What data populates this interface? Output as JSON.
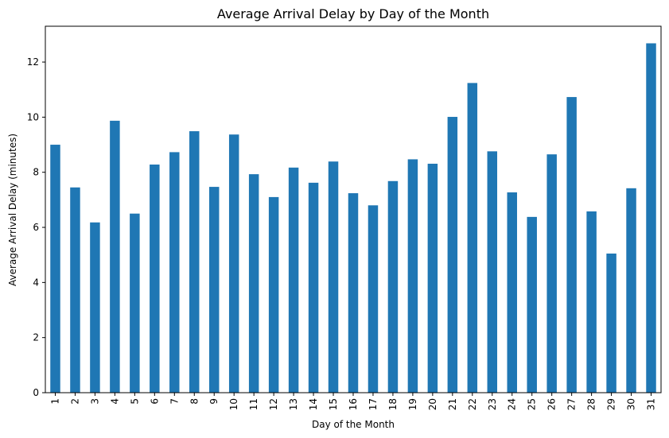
{
  "chart_data": {
    "type": "bar",
    "title": "Average Arrival Delay by Day of the Month",
    "xlabel": "Day of the Month",
    "ylabel": "Average Arrival Delay (minutes)",
    "categories": [
      "1",
      "2",
      "3",
      "4",
      "5",
      "6",
      "7",
      "8",
      "9",
      "10",
      "11",
      "12",
      "13",
      "14",
      "15",
      "16",
      "17",
      "18",
      "19",
      "20",
      "21",
      "22",
      "23",
      "24",
      "25",
      "26",
      "27",
      "28",
      "29",
      "30",
      "31"
    ],
    "values": [
      9.0,
      7.45,
      6.18,
      9.87,
      6.5,
      8.28,
      8.73,
      9.49,
      7.47,
      9.37,
      7.93,
      7.1,
      8.17,
      7.62,
      8.39,
      7.24,
      6.8,
      7.68,
      8.47,
      8.31,
      10.01,
      11.24,
      8.76,
      7.27,
      6.38,
      8.65,
      10.73,
      6.58,
      5.05,
      7.42,
      12.68
    ],
    "ylim": [
      0,
      13.3
    ],
    "yticks": [
      "0",
      "2",
      "4",
      "6",
      "8",
      "10",
      "12"
    ],
    "grid": false,
    "legend": "none",
    "bar_color": "#1f77b4"
  }
}
